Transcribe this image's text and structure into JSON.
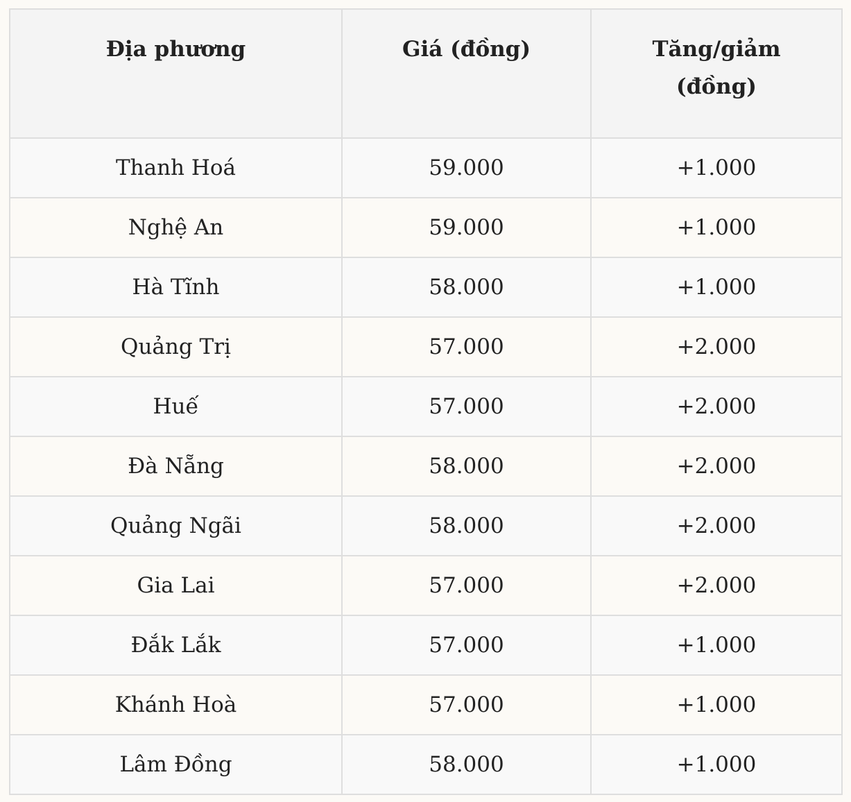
{
  "table": {
    "headers": [
      "Địa phương",
      "Giá (đồng)",
      "Tăng/giảm (đồng)"
    ],
    "rows": [
      [
        "Thanh Hoá",
        "59.000",
        "+1.000"
      ],
      [
        "Nghệ An",
        "59.000",
        "+1.000"
      ],
      [
        "Hà Tĩnh",
        "58.000",
        "+1.000"
      ],
      [
        "Quảng Trị",
        "57.000",
        "+2.000"
      ],
      [
        "Huế",
        "57.000",
        "+2.000"
      ],
      [
        "Đà Nẵng",
        "58.000",
        "+2.000"
      ],
      [
        "Quảng Ngãi",
        "58.000",
        "+2.000"
      ],
      [
        "Gia Lai",
        "57.000",
        "+2.000"
      ],
      [
        "Đắk Lắk",
        "57.000",
        "+1.000"
      ],
      [
        "Khánh Hoà",
        "57.000",
        "+1.000"
      ],
      [
        "Lâm Đồng",
        "58.000",
        "+1.000"
      ]
    ]
  }
}
